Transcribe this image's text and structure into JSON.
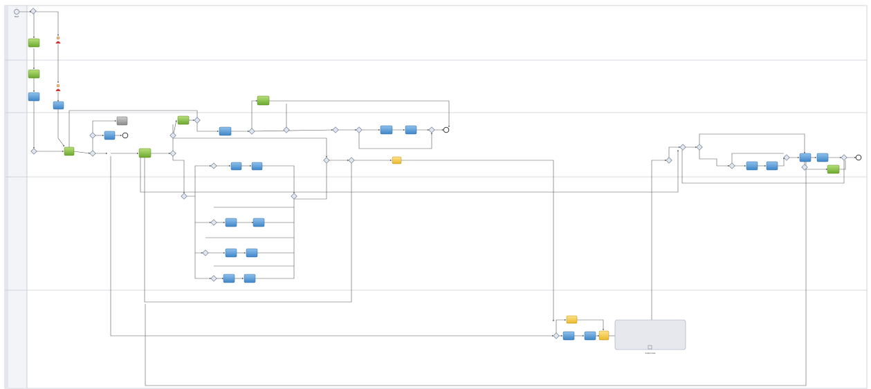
{
  "lanes": [
    {
      "name": "",
      "label_bind": "lane-0"
    },
    {
      "name": "",
      "label_bind": "lane-1"
    },
    {
      "name": "",
      "label_bind": "lane-2"
    },
    {
      "name": "",
      "label_bind": "lane-3"
    },
    {
      "name": "",
      "label_bind": "lane-4"
    },
    {
      "name": "",
      "label_bind": "lane-5"
    }
  ],
  "colors": {
    "lane_border": "#c9cbd6",
    "pool_strip": "#e9ebf2",
    "task_blue": "#5b9bd5",
    "task_green": "#8cc63f",
    "task_yellow": "#f2c94c",
    "task_gray": "#9a9a9a",
    "subprocess_fill": "#e6e8ee",
    "line": "#555555",
    "gateway": "#dfe6f0"
  },
  "labels": {
    "start": "Start",
    "end": "End",
    "subprocess": "Subprocess"
  }
}
